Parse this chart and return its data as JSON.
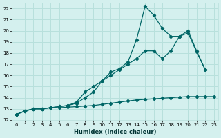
{
  "xlabel": "Humidex (Indice chaleur)",
  "bg_color": "#d4f0ee",
  "grid_color": "#b8e0dc",
  "line_color": "#006666",
  "xlim": [
    -0.5,
    23.5
  ],
  "ylim": [
    12,
    22.5
  ],
  "xticks": [
    0,
    1,
    2,
    3,
    4,
    5,
    6,
    7,
    8,
    9,
    10,
    11,
    12,
    13,
    14,
    15,
    16,
    17,
    18,
    19,
    20,
    21,
    22,
    23
  ],
  "yticks": [
    12,
    13,
    14,
    15,
    16,
    17,
    18,
    19,
    20,
    21,
    22
  ],
  "line1_x": [
    0,
    1,
    2,
    3,
    4,
    5,
    6,
    7,
    8,
    9,
    10,
    11,
    12,
    13,
    14,
    15,
    16,
    17,
    18,
    19,
    20,
    21,
    22,
    23
  ],
  "line1_y": [
    12.5,
    12.8,
    13.0,
    13.0,
    13.1,
    13.1,
    13.15,
    13.2,
    13.25,
    13.3,
    13.4,
    13.5,
    13.6,
    13.7,
    13.8,
    13.85,
    13.9,
    13.95,
    14.0,
    14.05,
    14.1,
    14.1,
    14.1,
    14.1
  ],
  "line2_x": [
    0,
    1,
    2,
    3,
    4,
    5,
    6,
    7,
    8,
    9,
    10,
    11,
    12,
    13,
    14,
    15,
    16,
    17,
    18,
    19,
    20,
    21,
    22
  ],
  "line2_y": [
    12.5,
    12.8,
    13.0,
    13.0,
    13.1,
    13.2,
    13.3,
    13.5,
    14.0,
    14.5,
    15.5,
    16.0,
    16.5,
    17.0,
    17.5,
    18.2,
    18.2,
    17.5,
    18.2,
    19.5,
    19.8,
    18.1,
    16.5
  ],
  "line3_x": [
    0,
    1,
    2,
    3,
    4,
    5,
    6,
    7,
    8,
    9,
    10,
    11,
    12,
    13,
    14,
    15,
    16,
    17,
    18,
    19,
    20,
    21,
    22
  ],
  "line3_y": [
    12.5,
    12.8,
    13.0,
    13.0,
    13.1,
    13.2,
    13.3,
    13.6,
    14.5,
    15.0,
    15.5,
    16.3,
    16.6,
    17.2,
    19.2,
    22.2,
    21.4,
    20.2,
    19.5,
    19.5,
    20.0,
    18.2,
    16.5
  ],
  "marker": "D",
  "markersize": 2.2,
  "linewidth": 0.9
}
